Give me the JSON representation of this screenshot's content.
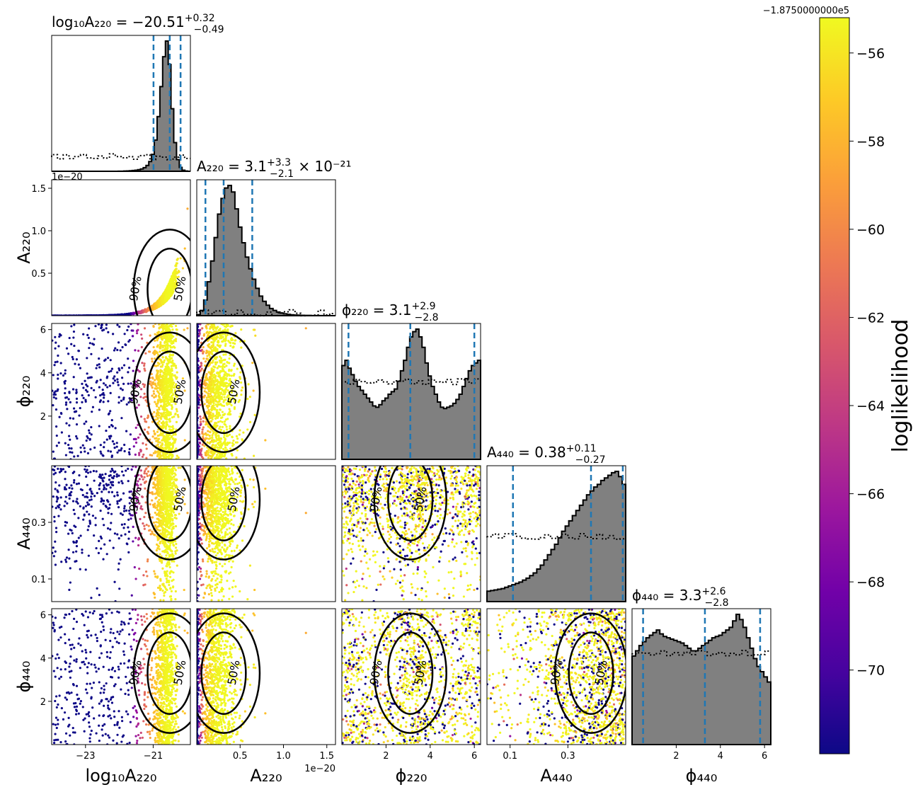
{
  "chart_data": {
    "type": "corner",
    "parameters": [
      {
        "id": "log10A220",
        "label": "log₁₀A₂₂₀",
        "range": [
          -24.0,
          -19.9
        ],
        "ticks": [
          -23,
          -21
        ],
        "tick_labels": [
          "−23",
          "−21"
        ],
        "title": {
          "prefix": "log₁₀A₂₂₀ = ",
          "value": "−20.51",
          "plus": "+0.32",
          "minus": "−0.49",
          "suffix": ""
        },
        "quantiles": [
          -20.99,
          -20.51,
          -20.19
        ],
        "hist": [
          0,
          0,
          0,
          0,
          0,
          0,
          0,
          0,
          0,
          0,
          0,
          0,
          0,
          0,
          0,
          0,
          0,
          0,
          0,
          0,
          0,
          0,
          0,
          0,
          1,
          1,
          2,
          3,
          4,
          6,
          8,
          12,
          18,
          28,
          45,
          75,
          130,
          240,
          420,
          650,
          880,
          1000,
          820,
          480,
          220,
          90,
          30,
          8,
          2,
          0
        ],
        "prior": 0.11
      },
      {
        "id": "A220",
        "label": "A₂₂₀",
        "range": [
          0.0,
          1.6e-20
        ],
        "ticks": [
          5e-21,
          1e-20,
          1.5e-20
        ],
        "tick_labels": [
          "0.5",
          "1.0",
          "1.5"
        ],
        "y_ticks": [
          5e-21,
          1e-20,
          1.5e-20
        ],
        "y_tick_labels": [
          "0.5",
          "1.0",
          "1.5"
        ],
        "offset": "1e−20",
        "title": {
          "prefix": "A₂₂₀ = ",
          "value": "3.1",
          "plus": "+3.3",
          "minus": "−2.1",
          "suffix": " × 10⁻²¹"
        },
        "quantiles": [
          1e-21,
          3.1e-21,
          6.4e-21
        ],
        "hist": [
          8,
          40,
          120,
          260,
          420,
          600,
          780,
          900,
          980,
          1000,
          950,
          820,
          680,
          560,
          450,
          360,
          280,
          210,
          150,
          110,
          80,
          55,
          40,
          28,
          20,
          14,
          10,
          7,
          5,
          4,
          3,
          2,
          2,
          1,
          1,
          1,
          0,
          0,
          0,
          0
        ],
        "prior": 0.02
      },
      {
        "id": "phi220",
        "label": "ϕ₂₂₀",
        "range": [
          0.0,
          6.283
        ],
        "ticks": [
          2,
          4,
          6
        ],
        "tick_labels": [
          "2",
          "4",
          "6"
        ],
        "y_ticks": [
          2,
          4,
          6
        ],
        "y_tick_labels": [
          "2",
          "4",
          "6"
        ],
        "title": {
          "prefix": "ϕ₂₂₀ = ",
          "value": "3.1",
          "plus": "+2.9",
          "minus": "−2.8",
          "suffix": ""
        },
        "quantiles": [
          0.3,
          3.1,
          6.0
        ],
        "hist": [
          720,
          760,
          700,
          650,
          600,
          560,
          530,
          500,
          470,
          440,
          410,
          400,
          420,
          450,
          470,
          500,
          520,
          540,
          600,
          680,
          760,
          860,
          940,
          980,
          1000,
          940,
          860,
          740,
          640,
          560,
          500,
          440,
          400,
          390,
          400,
          410,
          430,
          460,
          500,
          560,
          620,
          680,
          720,
          740,
          760
        ],
        "prior": 0.6
      },
      {
        "id": "A440",
        "label": "A₄₄₀",
        "range": [
          0.02,
          0.5
        ],
        "ticks": [
          0.1,
          0.3
        ],
        "tick_labels": [
          "0.1",
          "0.3"
        ],
        "y_ticks": [
          0.1,
          0.3
        ],
        "y_tick_labels": [
          "0.1",
          "0.3"
        ],
        "title": {
          "prefix": "A₄₄₀ = ",
          "value": "0.38",
          "plus": "+0.11",
          "minus": "−0.27",
          "suffix": ""
        },
        "quantiles": [
          0.11,
          0.38,
          0.49
        ],
        "hist": [
          80,
          85,
          90,
          95,
          100,
          110,
          120,
          130,
          140,
          150,
          165,
          180,
          200,
          220,
          250,
          280,
          320,
          360,
          400,
          440,
          490,
          540,
          580,
          620,
          660,
          700,
          740,
          780,
          820,
          850,
          880,
          900,
          930,
          950,
          970,
          990,
          1000,
          960,
          900
        ],
        "prior": 0.5
      },
      {
        "id": "phi440",
        "label": "ϕ₄₄₀",
        "range": [
          0.0,
          6.283
        ],
        "ticks": [
          2,
          4,
          6
        ],
        "tick_labels": [
          "2",
          "4",
          "6"
        ],
        "y_ticks": [
          2,
          4,
          6
        ],
        "y_tick_labels": [
          "2",
          "4",
          "6"
        ],
        "title": {
          "prefix": "ϕ₄₄₀ = ",
          "value": "3.3",
          "plus": "+2.6",
          "minus": "−2.8",
          "suffix": ""
        },
        "quantiles": [
          0.5,
          3.3,
          5.8
        ],
        "hist": [
          680,
          720,
          760,
          790,
          820,
          840,
          860,
          880,
          850,
          830,
          820,
          810,
          800,
          790,
          780,
          760,
          740,
          720,
          720,
          740,
          760,
          780,
          800,
          820,
          830,
          840,
          860,
          880,
          900,
          950,
          1000,
          960,
          900,
          820,
          740,
          660,
          600,
          560,
          520,
          480
        ],
        "prior": 0.7
      }
    ],
    "contour_levels": [
      "50%",
      "90%"
    ],
    "colorbar": {
      "label": "loglikelihood",
      "offset": "−1.8750000000e5",
      "min": -71.9,
      "max": -55.2,
      "ticks": [
        -56,
        -58,
        -60,
        -62,
        -64,
        -66,
        -68,
        -70
      ],
      "tick_labels": [
        "−56",
        "−58",
        "−60",
        "−62",
        "−64",
        "−66",
        "−68",
        "−70"
      ],
      "colormap": [
        "#0d0887",
        "#46039f",
        "#7201a8",
        "#9c179e",
        "#bd3786",
        "#d8576b",
        "#ed7953",
        "#fb9f3a",
        "#fdca26",
        "#f0f921"
      ]
    },
    "colors": {
      "histogram": "#808080",
      "quantile_line": "#1f77b4",
      "contour": "#000000"
    }
  }
}
